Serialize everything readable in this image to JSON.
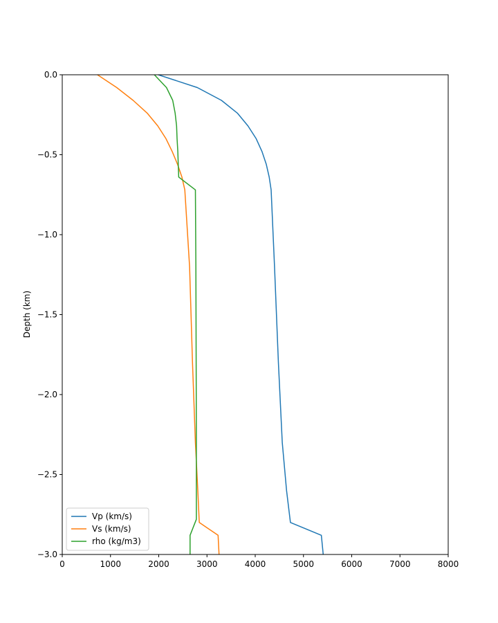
{
  "chart_data": {
    "type": "line",
    "title": "",
    "xlabel": "",
    "ylabel": "Depth (km)",
    "xlim": [
      0,
      8000
    ],
    "ylim": [
      -3.0,
      0.0
    ],
    "xticks": [
      0,
      1000,
      2000,
      3000,
      4000,
      5000,
      6000,
      7000,
      8000
    ],
    "xtick_labels": [
      "0",
      "1000",
      "2000",
      "3000",
      "4000",
      "5000",
      "6000",
      "7000",
      "8000"
    ],
    "yticks": [
      0.0,
      -0.5,
      -1.0,
      -1.5,
      -2.0,
      -2.5,
      -3.0
    ],
    "ytick_labels": [
      "0.0",
      "−0.5",
      "−1.0",
      "−1.5",
      "−2.0",
      "−2.5",
      "−3.0"
    ],
    "grid": false,
    "legend_position": "lower-left",
    "series": [
      {
        "name": "Vp (km/s)",
        "color": "#1f77b4",
        "points": [
          [
            1990,
            0.0
          ],
          [
            2800,
            -0.08
          ],
          [
            3300,
            -0.16
          ],
          [
            3630,
            -0.24
          ],
          [
            3850,
            -0.32
          ],
          [
            4020,
            -0.4
          ],
          [
            4140,
            -0.48
          ],
          [
            4230,
            -0.56
          ],
          [
            4290,
            -0.64
          ],
          [
            4330,
            -0.72
          ],
          [
            4400,
            -1.2
          ],
          [
            4480,
            -1.8
          ],
          [
            4560,
            -2.3
          ],
          [
            4650,
            -2.6
          ],
          [
            4730,
            -2.8
          ],
          [
            5370,
            -2.88
          ],
          [
            5410,
            -3.0
          ]
        ]
      },
      {
        "name": "Vs (km/s)",
        "color": "#ff7f0e",
        "points": [
          [
            730,
            0.0
          ],
          [
            1130,
            -0.08
          ],
          [
            1470,
            -0.16
          ],
          [
            1760,
            -0.24
          ],
          [
            1980,
            -0.32
          ],
          [
            2150,
            -0.4
          ],
          [
            2280,
            -0.48
          ],
          [
            2390,
            -0.56
          ],
          [
            2480,
            -0.64
          ],
          [
            2540,
            -0.72
          ],
          [
            2640,
            -1.2
          ],
          [
            2700,
            -1.8
          ],
          [
            2760,
            -2.3
          ],
          [
            2810,
            -2.6
          ],
          [
            2840,
            -2.8
          ],
          [
            3230,
            -2.88
          ],
          [
            3250,
            -3.0
          ]
        ]
      },
      {
        "name": "rho (kg/m3)",
        "color": "#2ca02c",
        "points": [
          [
            1910,
            0.0
          ],
          [
            2160,
            -0.08
          ],
          [
            2290,
            -0.16
          ],
          [
            2340,
            -0.24
          ],
          [
            2370,
            -0.32
          ],
          [
            2380,
            -0.4
          ],
          [
            2395,
            -0.48
          ],
          [
            2405,
            -0.56
          ],
          [
            2415,
            -0.64
          ],
          [
            2760,
            -0.72
          ],
          [
            2770,
            -1.2
          ],
          [
            2775,
            -1.8
          ],
          [
            2780,
            -2.3
          ],
          [
            2780,
            -2.6
          ],
          [
            2780,
            -2.78
          ],
          [
            2650,
            -2.88
          ],
          [
            2650,
            -3.0
          ]
        ]
      }
    ]
  }
}
